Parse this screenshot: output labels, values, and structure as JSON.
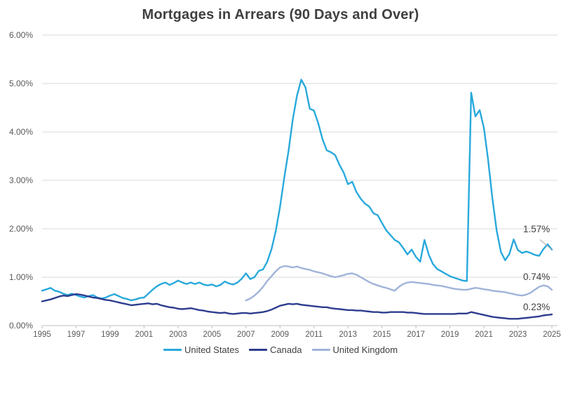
{
  "chart_data": {
    "type": "line",
    "title": "Mortgages in Arrears (90 Days and Over)",
    "y_axis": {
      "ticks": [
        "6.00%",
        "5.00%",
        "4.00%",
        "3.00%",
        "2.00%",
        "1.00%",
        "0.00%"
      ],
      "min": 0,
      "max": 6,
      "format": "percent",
      "grid": true
    },
    "x_axis": {
      "ticks": [
        "1995",
        "1997",
        "1999",
        "2001",
        "2003",
        "2005",
        "2007",
        "2009",
        "2011",
        "2013",
        "2015",
        "2017",
        "2019",
        "2021",
        "2023",
        "2025"
      ],
      "min": 1995,
      "max": 2025
    },
    "legend_position": "bottom",
    "colors": {
      "grid": "#D9D9D9",
      "axis": "#BFBFBF",
      "title_text": "#3F3F3F",
      "tick_text": "#595959",
      "data_label_text": "#404040",
      "leader": "#A6A6A6"
    },
    "series": [
      {
        "name": "United States",
        "color": "#29A9DC",
        "end_label": "1.57%",
        "x_start": 1995,
        "x_step": 0.25,
        "values": [
          0.72,
          0.75,
          0.78,
          0.72,
          0.7,
          0.66,
          0.63,
          0.66,
          0.63,
          0.6,
          0.58,
          0.61,
          0.63,
          0.58,
          0.56,
          0.58,
          0.62,
          0.65,
          0.61,
          0.57,
          0.55,
          0.52,
          0.54,
          0.57,
          0.58,
          0.66,
          0.74,
          0.81,
          0.86,
          0.89,
          0.84,
          0.88,
          0.93,
          0.89,
          0.86,
          0.89,
          0.86,
          0.89,
          0.85,
          0.83,
          0.85,
          0.81,
          0.84,
          0.91,
          0.87,
          0.85,
          0.89,
          0.97,
          1.08,
          0.96,
          1.0,
          1.13,
          1.16,
          1.32,
          1.58,
          1.95,
          2.45,
          3.05,
          3.6,
          4.25,
          4.75,
          5.08,
          4.92,
          4.48,
          4.44,
          4.18,
          3.85,
          3.62,
          3.58,
          3.52,
          3.32,
          3.16,
          2.92,
          2.97,
          2.76,
          2.62,
          2.52,
          2.46,
          2.32,
          2.28,
          2.12,
          1.97,
          1.87,
          1.77,
          1.72,
          1.6,
          1.47,
          1.57,
          1.42,
          1.32,
          1.77,
          1.47,
          1.27,
          1.17,
          1.12,
          1.07,
          1.02,
          0.99,
          0.96,
          0.93,
          0.92,
          4.81,
          4.32,
          4.45,
          4.08,
          3.42,
          2.62,
          1.97,
          1.52,
          1.35,
          1.48,
          1.78,
          1.56,
          1.5,
          1.53,
          1.5,
          1.46,
          1.44,
          1.58,
          1.68,
          1.57
        ]
      },
      {
        "name": "Canada",
        "color": "#2E3D8F",
        "end_label": "0.23%",
        "x_start": 1995,
        "x_step": 0.25,
        "values": [
          0.5,
          0.52,
          0.54,
          0.57,
          0.6,
          0.62,
          0.61,
          0.63,
          0.65,
          0.64,
          0.62,
          0.6,
          0.58,
          0.57,
          0.55,
          0.53,
          0.52,
          0.5,
          0.48,
          0.46,
          0.44,
          0.42,
          0.43,
          0.44,
          0.45,
          0.46,
          0.44,
          0.45,
          0.42,
          0.4,
          0.38,
          0.37,
          0.35,
          0.34,
          0.35,
          0.36,
          0.34,
          0.32,
          0.31,
          0.29,
          0.28,
          0.27,
          0.26,
          0.27,
          0.25,
          0.24,
          0.25,
          0.26,
          0.26,
          0.25,
          0.26,
          0.27,
          0.28,
          0.3,
          0.33,
          0.37,
          0.41,
          0.43,
          0.45,
          0.44,
          0.45,
          0.43,
          0.42,
          0.41,
          0.4,
          0.39,
          0.38,
          0.38,
          0.36,
          0.35,
          0.34,
          0.33,
          0.32,
          0.32,
          0.31,
          0.31,
          0.3,
          0.29,
          0.28,
          0.28,
          0.27,
          0.27,
          0.28,
          0.28,
          0.28,
          0.28,
          0.27,
          0.27,
          0.26,
          0.25,
          0.24,
          0.24,
          0.24,
          0.24,
          0.24,
          0.24,
          0.24,
          0.24,
          0.25,
          0.25,
          0.25,
          0.28,
          0.26,
          0.24,
          0.22,
          0.2,
          0.18,
          0.17,
          0.16,
          0.15,
          0.14,
          0.14,
          0.14,
          0.15,
          0.16,
          0.17,
          0.18,
          0.19,
          0.21,
          0.22,
          0.23
        ]
      },
      {
        "name": "United Kingdom",
        "color": "#A0B4D8",
        "end_label": "0.74%",
        "x_start": 2007,
        "x_step": 0.25,
        "values": [
          0.52,
          0.56,
          0.62,
          0.7,
          0.8,
          0.92,
          1.02,
          1.12,
          1.2,
          1.23,
          1.22,
          1.2,
          1.22,
          1.19,
          1.17,
          1.15,
          1.12,
          1.1,
          1.08,
          1.05,
          1.02,
          1.0,
          1.02,
          1.04,
          1.07,
          1.08,
          1.05,
          1.0,
          0.95,
          0.9,
          0.86,
          0.83,
          0.8,
          0.78,
          0.75,
          0.72,
          0.8,
          0.86,
          0.89,
          0.9,
          0.89,
          0.88,
          0.87,
          0.86,
          0.84,
          0.83,
          0.82,
          0.8,
          0.78,
          0.76,
          0.75,
          0.74,
          0.74,
          0.76,
          0.78,
          0.77,
          0.75,
          0.74,
          0.72,
          0.71,
          0.7,
          0.69,
          0.67,
          0.65,
          0.63,
          0.62,
          0.64,
          0.68,
          0.74,
          0.8,
          0.83,
          0.81,
          0.74
        ]
      }
    ]
  }
}
